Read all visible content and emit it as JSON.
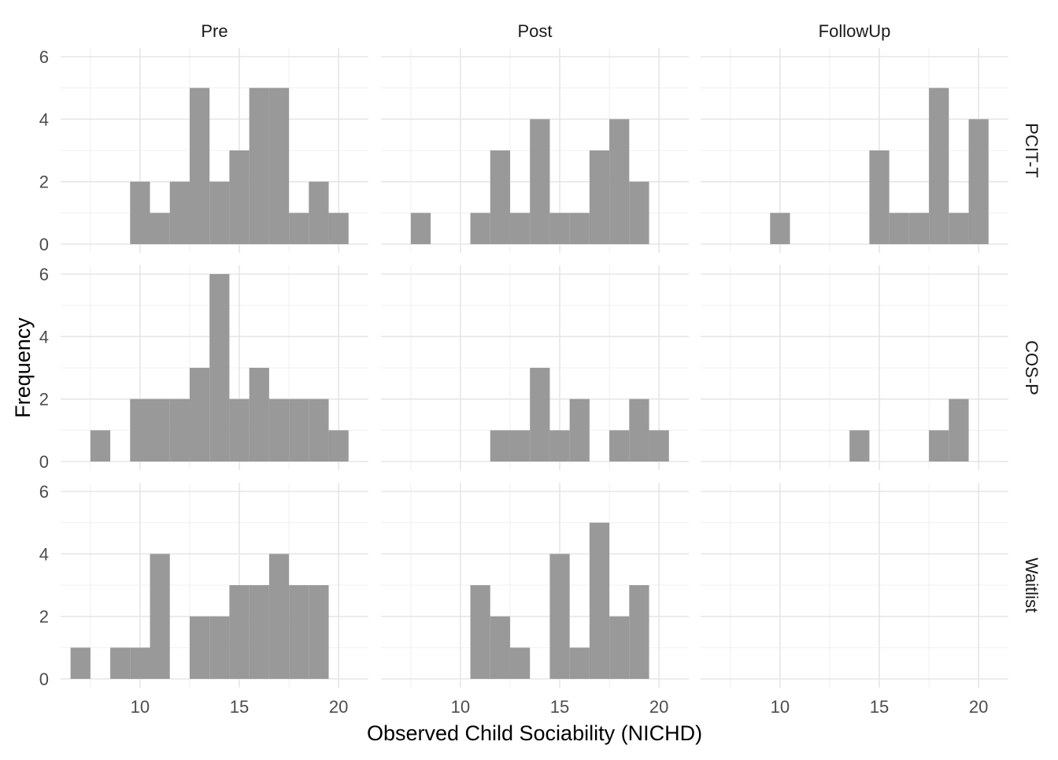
{
  "chart_data": {
    "type": "bar",
    "xlabel": "Observed Child Sociability (NICHD)",
    "ylabel": "Frequency",
    "columns": [
      "Pre",
      "Post",
      "FollowUp"
    ],
    "rows": [
      "PCIT-T",
      "COS-P",
      "Waitlist"
    ],
    "xlim": [
      6,
      21.5
    ],
    "ylim": [
      0,
      6
    ],
    "x_ticks": [
      10,
      15,
      20
    ],
    "y_ticks": [
      0,
      2,
      4,
      6
    ],
    "bin_width": 1,
    "grid": true,
    "bar_color": "#999999",
    "panels": [
      {
        "row": "PCIT-T",
        "col": "Pre",
        "bins": [
          {
            "x": 10,
            "count": 2
          },
          {
            "x": 11,
            "count": 1
          },
          {
            "x": 12,
            "count": 2
          },
          {
            "x": 13,
            "count": 5
          },
          {
            "x": 14,
            "count": 2
          },
          {
            "x": 15,
            "count": 3
          },
          {
            "x": 16,
            "count": 5
          },
          {
            "x": 17,
            "count": 5
          },
          {
            "x": 18,
            "count": 1
          },
          {
            "x": 19,
            "count": 2
          },
          {
            "x": 20,
            "count": 1
          }
        ]
      },
      {
        "row": "PCIT-T",
        "col": "Post",
        "bins": [
          {
            "x": 8,
            "count": 1
          },
          {
            "x": 11,
            "count": 1
          },
          {
            "x": 12,
            "count": 3
          },
          {
            "x": 13,
            "count": 1
          },
          {
            "x": 14,
            "count": 4
          },
          {
            "x": 15,
            "count": 1
          },
          {
            "x": 16,
            "count": 1
          },
          {
            "x": 17,
            "count": 3
          },
          {
            "x": 18,
            "count": 4
          },
          {
            "x": 19,
            "count": 2
          }
        ]
      },
      {
        "row": "PCIT-T",
        "col": "FollowUp",
        "bins": [
          {
            "x": 10,
            "count": 1
          },
          {
            "x": 15,
            "count": 3
          },
          {
            "x": 16,
            "count": 1
          },
          {
            "x": 17,
            "count": 1
          },
          {
            "x": 18,
            "count": 5
          },
          {
            "x": 19,
            "count": 1
          },
          {
            "x": 20,
            "count": 4
          }
        ]
      },
      {
        "row": "COS-P",
        "col": "Pre",
        "bins": [
          {
            "x": 8,
            "count": 1
          },
          {
            "x": 10,
            "count": 2
          },
          {
            "x": 11,
            "count": 2
          },
          {
            "x": 12,
            "count": 2
          },
          {
            "x": 13,
            "count": 3
          },
          {
            "x": 14,
            "count": 6
          },
          {
            "x": 15,
            "count": 2
          },
          {
            "x": 16,
            "count": 3
          },
          {
            "x": 17,
            "count": 2
          },
          {
            "x": 18,
            "count": 2
          },
          {
            "x": 19,
            "count": 2
          },
          {
            "x": 20,
            "count": 1
          }
        ]
      },
      {
        "row": "COS-P",
        "col": "Post",
        "bins": [
          {
            "x": 12,
            "count": 1
          },
          {
            "x": 13,
            "count": 1
          },
          {
            "x": 14,
            "count": 3
          },
          {
            "x": 15,
            "count": 1
          },
          {
            "x": 16,
            "count": 2
          },
          {
            "x": 18,
            "count": 1
          },
          {
            "x": 19,
            "count": 2
          },
          {
            "x": 20,
            "count": 1
          }
        ]
      },
      {
        "row": "COS-P",
        "col": "FollowUp",
        "bins": [
          {
            "x": 14,
            "count": 1
          },
          {
            "x": 18,
            "count": 1
          },
          {
            "x": 19,
            "count": 2
          }
        ]
      },
      {
        "row": "Waitlist",
        "col": "Pre",
        "bins": [
          {
            "x": 7,
            "count": 1
          },
          {
            "x": 9,
            "count": 1
          },
          {
            "x": 10,
            "count": 1
          },
          {
            "x": 11,
            "count": 4
          },
          {
            "x": 13,
            "count": 2
          },
          {
            "x": 14,
            "count": 2
          },
          {
            "x": 15,
            "count": 3
          },
          {
            "x": 16,
            "count": 3
          },
          {
            "x": 17,
            "count": 4
          },
          {
            "x": 18,
            "count": 3
          },
          {
            "x": 19,
            "count": 3
          }
        ]
      },
      {
        "row": "Waitlist",
        "col": "Post",
        "bins": [
          {
            "x": 11,
            "count": 3
          },
          {
            "x": 12,
            "count": 2
          },
          {
            "x": 13,
            "count": 1
          },
          {
            "x": 15,
            "count": 4
          },
          {
            "x": 16,
            "count": 1
          },
          {
            "x": 17,
            "count": 5
          },
          {
            "x": 18,
            "count": 2
          },
          {
            "x": 19,
            "count": 3
          }
        ]
      },
      {
        "row": "Waitlist",
        "col": "FollowUp",
        "bins": []
      }
    ]
  }
}
